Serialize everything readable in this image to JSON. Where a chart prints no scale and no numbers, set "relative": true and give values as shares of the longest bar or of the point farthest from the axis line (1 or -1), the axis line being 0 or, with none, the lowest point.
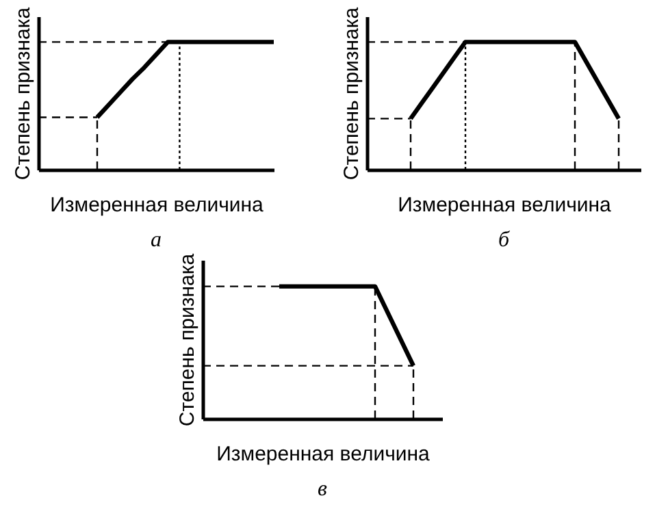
{
  "chart_data": [
    {
      "type": "line",
      "title": "а",
      "xlabel": "Измеренная величина",
      "ylabel": "Степень признака",
      "relative": true,
      "line_style": "solid",
      "categories": [
        null,
        null,
        null,
        null,
        null,
        null,
        null,
        null,
        null,
        null,
        null,
        null,
        null,
        null,
        null,
        null,
        null,
        null,
        null,
        null,
        null
      ],
      "series": [
        {
          "color": "#000000",
          "values": [
            null,
            null,
            null,
            null,
            null,
            0.41,
            0.51,
            0.61,
            0.71,
            0.8,
            0.9,
            1,
            1,
            1,
            1,
            1,
            1,
            1,
            1,
            1,
            1
          ]
        }
      ],
      "ref_lines": [
        {
          "axis": "y",
          "value": 0.41,
          "line_style": "dashed",
          "color": "#000000"
        },
        {
          "axis": "y",
          "value": 1,
          "line_style": "dashed",
          "color": "#000000"
        }
      ]
    },
    {
      "type": "line",
      "title": "б",
      "xlabel": "Измеренная величина",
      "ylabel": "Степень признака",
      "relative": true,
      "line_style": "solid",
      "categories": [
        null,
        null,
        null,
        null,
        null,
        null,
        null,
        null,
        null,
        null,
        null,
        null,
        null,
        null,
        null,
        null,
        null,
        null,
        null,
        null,
        null,
        null,
        null,
        null,
        null,
        null
      ],
      "series": [
        {
          "color": "#000000",
          "values": [
            null,
            null,
            null,
            null,
            0.4,
            0.52,
            0.64,
            0.76,
            0.88,
            1,
            1,
            1,
            1,
            1,
            1,
            1,
            1,
            1,
            1,
            1,
            0.85,
            0.7,
            0.55,
            0.4,
            null,
            null
          ]
        }
      ],
      "ref_lines": [
        {
          "axis": "y",
          "value": 0.4,
          "line_style": "dashed",
          "color": "#000000"
        },
        {
          "axis": "y",
          "value": 1,
          "line_style": "dashed",
          "color": "#000000"
        }
      ]
    },
    {
      "type": "line",
      "title": "в",
      "xlabel": "Измеренная величина",
      "ylabel": "Степень признака",
      "relative": true,
      "line_style": "solid",
      "categories": [
        null,
        null,
        null,
        null,
        null,
        null,
        null,
        null,
        null,
        null,
        null,
        null,
        null,
        null,
        null,
        null,
        null,
        null,
        null,
        null,
        null,
        null,
        null,
        null,
        null,
        null
      ],
      "series": [
        {
          "color": "#000000",
          "values": [
            null,
            null,
            null,
            null,
            null,
            null,
            null,
            null,
            1,
            1,
            1,
            1,
            1,
            1,
            1,
            1,
            1,
            1,
            1,
            0.85,
            0.7,
            0.55,
            0.4,
            null,
            null,
            null
          ]
        }
      ],
      "ref_lines": [
        {
          "axis": "y",
          "value": 1,
          "line_style": "dashed",
          "color": "#000000"
        },
        {
          "axis": "y",
          "value": 0.4,
          "line_style": "dashed",
          "color": "#000000"
        }
      ]
    }
  ]
}
